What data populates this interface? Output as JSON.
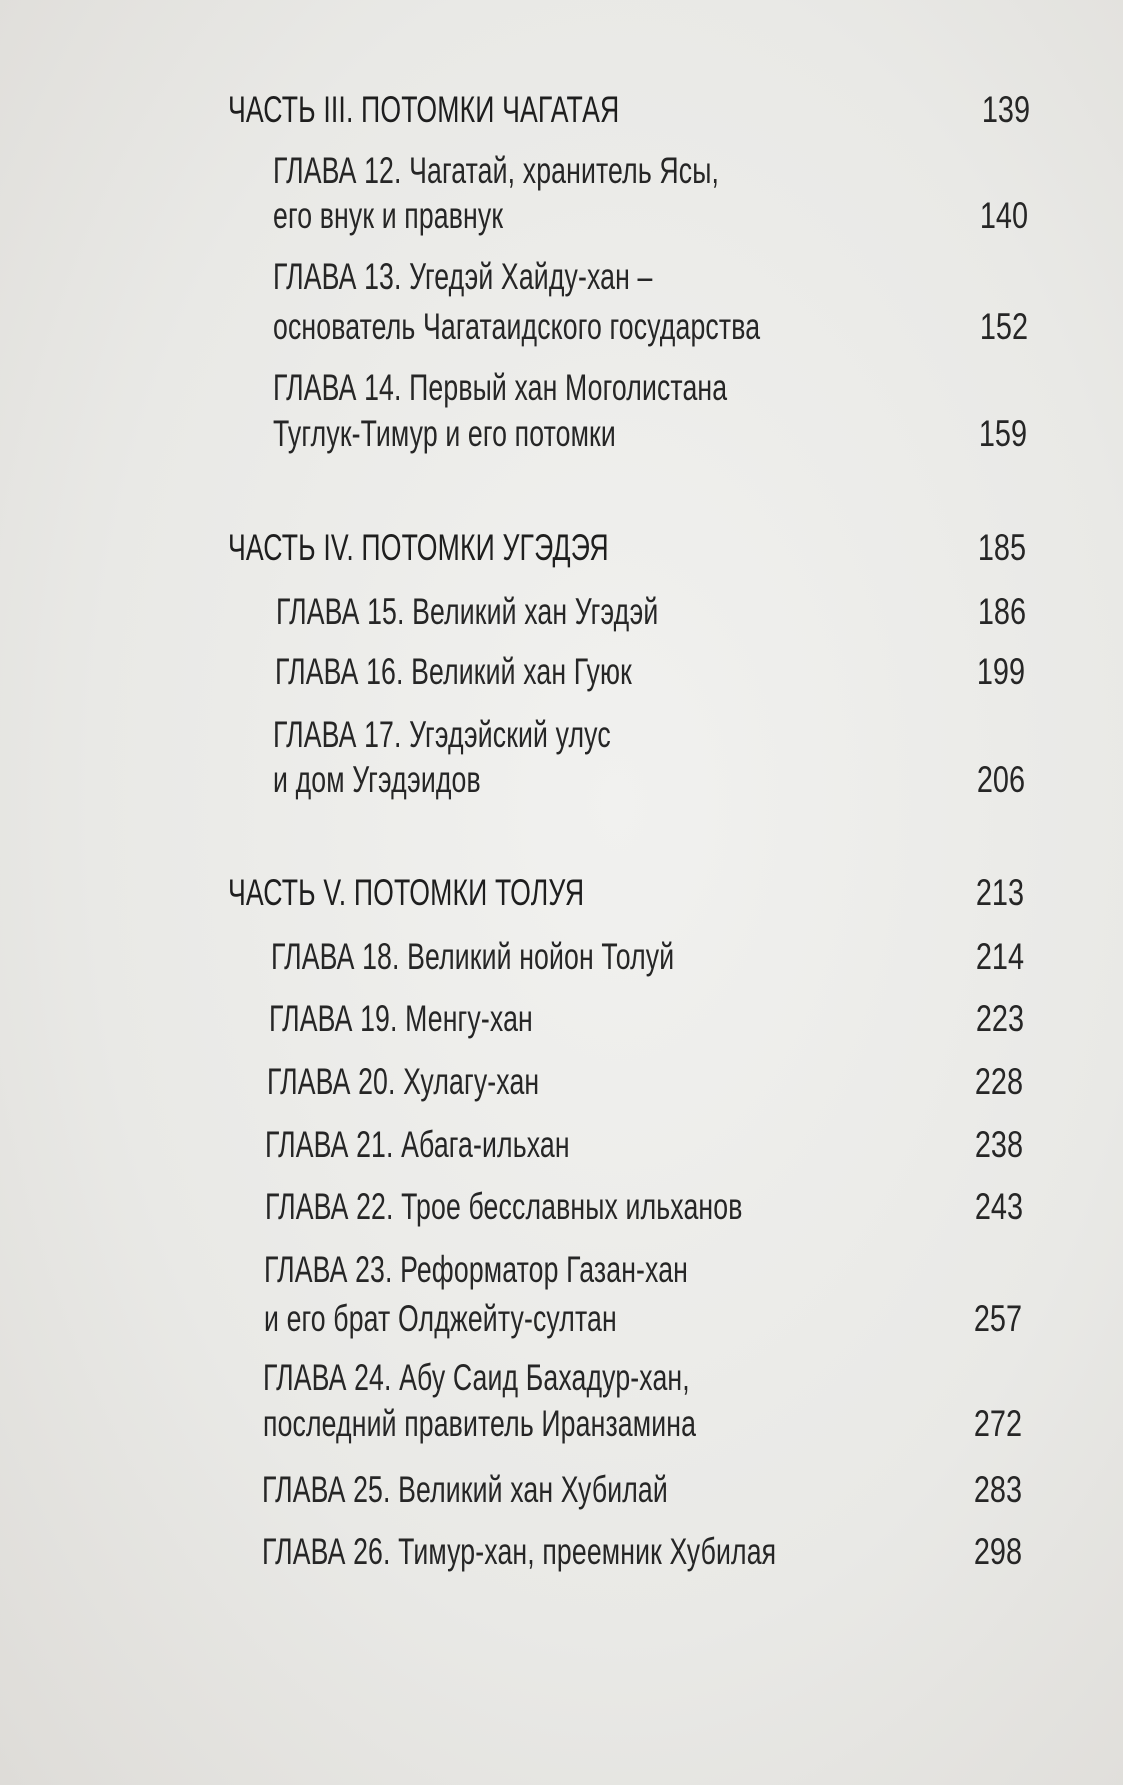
{
  "toc": [
    {
      "kind": "part",
      "lines": [
        "ЧАСТЬ III. ПОТОМКИ  ЧАГАТАЯ"
      ],
      "page": "139"
    },
    {
      "kind": "chapter",
      "lines": [
        "ГЛАВА 12. Чагатай, хранитель Ясы,",
        "его внук и правнук"
      ],
      "page": "140"
    },
    {
      "kind": "chapter",
      "lines": [
        "ГЛАВА 13. Угедэй Хайду-хан –",
        "основатель Чагатаидского государства"
      ],
      "page": "152"
    },
    {
      "kind": "chapter",
      "lines": [
        "ГЛАВА 14. Первый хан Моголистана",
        "Туглук-Тимур и его потомки"
      ],
      "page": "159"
    },
    {
      "kind": "part",
      "lines": [
        "ЧАСТЬ IV. ПОТОМКИ  УГЭДЭЯ"
      ],
      "page": "185"
    },
    {
      "kind": "chapter",
      "lines": [
        "ГЛАВА 15. Великий хан Угэдэй"
      ],
      "page": "186"
    },
    {
      "kind": "chapter",
      "lines": [
        "ГЛАВА 16. Великий хан Гуюк"
      ],
      "page": "199"
    },
    {
      "kind": "chapter",
      "lines": [
        "ГЛАВА 17. Угэдэйский улус",
        "и дом Угэдэидов"
      ],
      "page": "206"
    },
    {
      "kind": "part",
      "lines": [
        "ЧАСТЬ V. ПОТОМКИ ТОЛУЯ"
      ],
      "page": "213"
    },
    {
      "kind": "chapter",
      "lines": [
        "ГЛАВА 18. Великий нойон Толуй"
      ],
      "page": "214"
    },
    {
      "kind": "chapter",
      "lines": [
        "ГЛАВА 19. Менгу-хан"
      ],
      "page": "223"
    },
    {
      "kind": "chapter",
      "lines": [
        "ГЛАВА 20. Хулагу-хан"
      ],
      "page": "228"
    },
    {
      "kind": "chapter",
      "lines": [
        "ГЛАВА 21. Абага-ильхан"
      ],
      "page": "238"
    },
    {
      "kind": "chapter",
      "lines": [
        "ГЛАВА 22. Трое бесславных ильханов"
      ],
      "page": "243"
    },
    {
      "kind": "chapter",
      "lines": [
        "ГЛАВА 23. Реформатор Газан-хан",
        "и его брат Олджейту-султан"
      ],
      "page": "257"
    },
    {
      "kind": "chapter",
      "lines": [
        "ГЛАВА 24. Абу Саид Бахадур-хан,",
        "последний правитель Иранзамина"
      ],
      "page": "272"
    },
    {
      "kind": "chapter",
      "lines": [
        "ГЛАВА 25. Великий хан Хубилай"
      ],
      "page": "283"
    },
    {
      "kind": "chapter",
      "lines": [
        "ГЛАВА 26. Тимур-хан, преемник Хубилая"
      ],
      "page": "298"
    }
  ]
}
